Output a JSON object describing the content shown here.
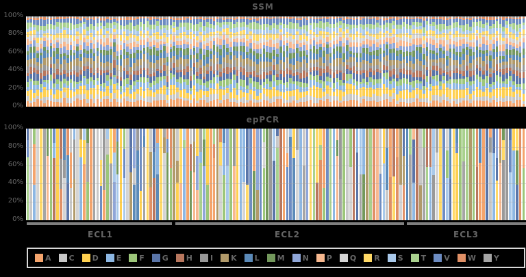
{
  "chart_data": [
    {
      "type": "bar",
      "stacked": "percent",
      "title": "SSM",
      "yticks": [
        "0%",
        "20%",
        "40%",
        "60%",
        "80%",
        "100%"
      ],
      "ylim": [
        0,
        100
      ],
      "num_bars": 150,
      "description": "Nearly uniform composition across all positions; each bar contains most amino acids in small proportions",
      "typical_composition": {
        "A": 6,
        "C": 5,
        "D": 8,
        "E": 6,
        "F": 5,
        "G": 6,
        "H": 5,
        "I": 5,
        "K": 6,
        "L": 6,
        "M": 5,
        "N": 5,
        "P": 5,
        "Q": 4,
        "R": 5,
        "S": 5,
        "T": 5,
        "V": 5,
        "W": 2,
        "Y": 1
      }
    },
    {
      "type": "bar",
      "stacked": "percent",
      "title": "epPCR",
      "yticks": [
        "0%",
        "20%",
        "40%",
        "60%",
        "80%",
        "100%"
      ],
      "ylim": [
        0,
        100
      ],
      "num_bars": 150,
      "description": "Each position dominated by one or two amino acids",
      "groups": [
        {
          "label": "ECL1",
          "start": 0,
          "end": 44
        },
        {
          "label": "ECL2",
          "start": 45,
          "end": 113
        },
        {
          "label": "ECL3",
          "start": 114,
          "end": 149
        }
      ]
    }
  ],
  "legend": [
    {
      "key": "A",
      "color": "#f4a46c"
    },
    {
      "key": "C",
      "color": "#c8c8c8"
    },
    {
      "key": "D",
      "color": "#ffd04f"
    },
    {
      "key": "E",
      "color": "#8db7e3"
    },
    {
      "key": "F",
      "color": "#9cc67a"
    },
    {
      "key": "G",
      "color": "#5a75a8"
    },
    {
      "key": "H",
      "color": "#b8775e"
    },
    {
      "key": "I",
      "color": "#999999"
    },
    {
      "key": "K",
      "color": "#b19a6a"
    },
    {
      "key": "L",
      "color": "#5b8ab8"
    },
    {
      "key": "M",
      "color": "#73985c"
    },
    {
      "key": "N",
      "color": "#8fa6d8"
    },
    {
      "key": "P",
      "color": "#f7b88f"
    },
    {
      "key": "Q",
      "color": "#d4d4d4"
    },
    {
      "key": "R",
      "color": "#ffd966"
    },
    {
      "key": "S",
      "color": "#a9c9ea"
    },
    {
      "key": "T",
      "color": "#a9d18e"
    },
    {
      "key": "V",
      "color": "#6d8cc2"
    },
    {
      "key": "W",
      "color": "#e09066"
    },
    {
      "key": "Y",
      "color": "#a5a5a5"
    }
  ],
  "titles": {
    "top": "SSM",
    "bottom": "epPCR"
  },
  "groups": {
    "g1": "ECL1",
    "g2": "ECL2",
    "g3": "ECL3"
  }
}
